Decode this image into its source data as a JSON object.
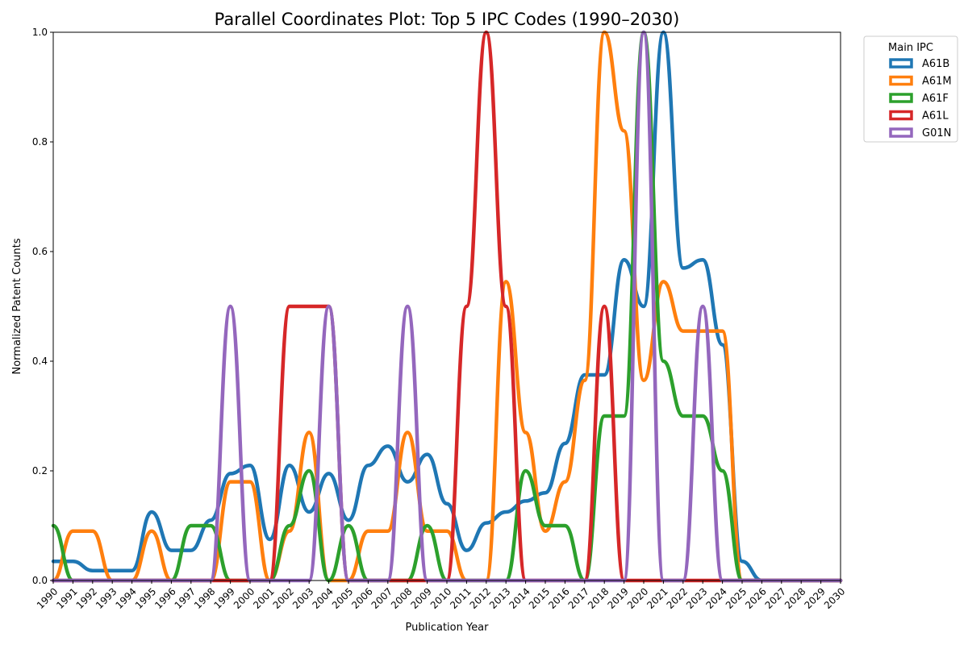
{
  "chart_data": {
    "type": "line",
    "title": "Parallel Coordinates Plot: Top 5 IPC Codes (1990–2030)",
    "xlabel": "Publication Year",
    "ylabel": "Normalized Patent Counts",
    "ylim": [
      0,
      1
    ],
    "yticks": [
      "0.0",
      "0.2",
      "0.4",
      "0.6",
      "0.8",
      "1.0"
    ],
    "categories": [
      "1990",
      "1991",
      "1992",
      "1993",
      "1994",
      "1995",
      "1996",
      "1997",
      "1998",
      "1999",
      "2000",
      "2001",
      "2002",
      "2003",
      "2004",
      "2005",
      "2006",
      "2007",
      "2008",
      "2009",
      "2010",
      "2011",
      "2012",
      "2013",
      "2014",
      "2015",
      "2016",
      "2017",
      "2018",
      "2019",
      "2020",
      "2021",
      "2022",
      "2023",
      "2024",
      "2025",
      "2026",
      "2027",
      "2028",
      "2029",
      "2030"
    ],
    "legend": {
      "title": "Main IPC",
      "placement": "outside-top-right"
    },
    "grid": false,
    "series": [
      {
        "name": "A61B",
        "color": "#1f77b4",
        "values": [
          0.035,
          0.035,
          0.018,
          0.018,
          0.018,
          0.125,
          0.055,
          0.055,
          0.11,
          0.195,
          0.21,
          0.075,
          0.21,
          0.125,
          0.195,
          0.11,
          0.21,
          0.245,
          0.18,
          0.23,
          0.14,
          0.055,
          0.105,
          0.125,
          0.145,
          0.16,
          0.25,
          0.375,
          0.375,
          0.585,
          0.5,
          1.0,
          0.57,
          0.585,
          0.43,
          0.035,
          0,
          0,
          0,
          0,
          0
        ]
      },
      {
        "name": "A61M",
        "color": "#ff7f0e",
        "values": [
          0,
          0.09,
          0.09,
          0,
          0,
          0.09,
          0,
          0,
          0,
          0.18,
          0.18,
          0,
          0.09,
          0.27,
          0,
          0,
          0.09,
          0.09,
          0.27,
          0.09,
          0.09,
          0,
          0,
          0.545,
          0.27,
          0.09,
          0.18,
          0.365,
          1.0,
          0.82,
          0.365,
          0.545,
          0.455,
          0.455,
          0.455,
          0,
          0,
          0,
          0,
          0,
          0
        ]
      },
      {
        "name": "A61F",
        "color": "#2ca02c",
        "values": [
          0.1,
          0,
          0,
          0,
          0,
          0,
          0,
          0.1,
          0.1,
          0,
          0,
          0,
          0.1,
          0.2,
          0,
          0.1,
          0,
          0,
          0,
          0.1,
          0,
          0,
          0,
          0,
          0.2,
          0.1,
          0.1,
          0,
          0.3,
          0.3,
          1.0,
          0.4,
          0.3,
          0.3,
          0.2,
          0,
          0,
          0,
          0,
          0,
          0
        ]
      },
      {
        "name": "A61L",
        "color": "#d62728",
        "values": [
          0,
          0,
          0,
          0,
          0,
          0,
          0,
          0,
          0,
          0,
          0,
          0,
          0.5,
          0.5,
          0.5,
          0,
          0,
          0,
          0,
          0,
          0,
          0.5,
          1.0,
          0.5,
          0,
          0,
          0,
          0,
          0.5,
          0,
          0,
          0,
          0,
          0,
          0,
          0,
          0,
          0,
          0,
          0,
          0
        ]
      },
      {
        "name": "G01N",
        "color": "#9467bd",
        "values": [
          0,
          0,
          0,
          0,
          0,
          0,
          0,
          0,
          0,
          0.5,
          0,
          0,
          0,
          0,
          0.5,
          0,
          0,
          0,
          0.5,
          0,
          0,
          0,
          0,
          0,
          0,
          0,
          0,
          0,
          0,
          0,
          1.0,
          0,
          0,
          0.5,
          0,
          0,
          0,
          0,
          0,
          0,
          0
        ]
      }
    ]
  }
}
